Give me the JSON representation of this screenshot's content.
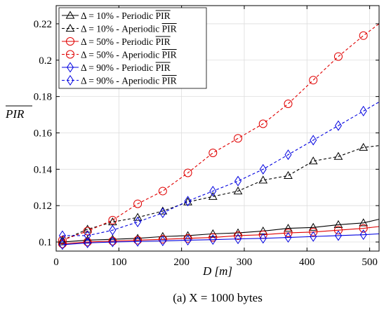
{
  "chart_data": {
    "type": "line",
    "xlabel": "D [m]",
    "ylabel": "PIR",
    "caption": "(a) X = 1000 bytes",
    "xlim": [
      0,
      515
    ],
    "ylim": [
      0.095,
      0.23
    ],
    "xticks": [
      "0",
      "100",
      "200",
      "300",
      "400",
      "500"
    ],
    "xtick_values": [
      0,
      100,
      200,
      300,
      400,
      500
    ],
    "yticks": [
      "0.1",
      "0.12",
      "0.14",
      "0.16",
      "0.18",
      "0.2",
      "0.22"
    ],
    "ytick_values": [
      0.1,
      0.12,
      0.14,
      0.16,
      0.18,
      0.2,
      0.22
    ],
    "grid": true,
    "legend_position": "top-left",
    "series": [
      {
        "name": "Δ = 10% - Periodic PIR",
        "color": "#000000",
        "dash": "solid",
        "marker": "triangle",
        "x": [
          10,
          50,
          90,
          130,
          170,
          210,
          250,
          290,
          330,
          370,
          410,
          450,
          490,
          515
        ],
        "y": [
          0.1,
          0.101,
          0.1015,
          0.102,
          0.103,
          0.1035,
          0.1045,
          0.105,
          0.106,
          0.1075,
          0.108,
          0.1095,
          0.1105,
          0.1125
        ]
      },
      {
        "name": "Δ = 10% - Aperiodic PIR",
        "color": "#000000",
        "dash": "dashed",
        "marker": "triangle",
        "x": [
          10,
          50,
          90,
          130,
          170,
          210,
          250,
          290,
          330,
          370,
          410,
          450,
          490,
          515
        ],
        "y": [
          0.101,
          0.107,
          0.111,
          0.1135,
          0.117,
          0.122,
          0.125,
          0.128,
          0.134,
          0.1365,
          0.1445,
          0.147,
          0.152,
          0.153
        ]
      },
      {
        "name": "Δ = 50% - Periodic PIR",
        "color": "#e00000",
        "dash": "solid",
        "marker": "circle",
        "x": [
          10,
          50,
          90,
          130,
          170,
          210,
          250,
          290,
          330,
          370,
          410,
          450,
          490,
          515
        ],
        "y": [
          0.099,
          0.1,
          0.1005,
          0.101,
          0.1015,
          0.102,
          0.1025,
          0.1035,
          0.104,
          0.105,
          0.1055,
          0.1065,
          0.1075,
          0.1085
        ]
      },
      {
        "name": "Δ = 50% - Aperiodic PIR",
        "color": "#e00000",
        "dash": "dashed",
        "marker": "circle",
        "x": [
          10,
          50,
          90,
          130,
          170,
          210,
          250,
          290,
          330,
          370,
          410,
          450,
          490,
          515
        ],
        "y": [
          0.101,
          0.106,
          0.112,
          0.121,
          0.128,
          0.138,
          0.149,
          0.157,
          0.165,
          0.176,
          0.189,
          0.202,
          0.2135,
          0.22
        ]
      },
      {
        "name": "Δ = 90% - Periodic PIR",
        "color": "#0000e0",
        "dash": "solid",
        "marker": "diamond",
        "x": [
          10,
          50,
          90,
          130,
          170,
          210,
          250,
          290,
          330,
          370,
          410,
          450,
          490,
          515
        ],
        "y": [
          0.0985,
          0.0995,
          0.1,
          0.1003,
          0.1006,
          0.101,
          0.1013,
          0.1017,
          0.102,
          0.1025,
          0.103,
          0.1035,
          0.104,
          0.1045
        ]
      },
      {
        "name": "Δ = 90% - Aperiodic PIR",
        "color": "#0000e0",
        "dash": "dashed",
        "marker": "diamond",
        "x": [
          10,
          50,
          90,
          130,
          170,
          210,
          250,
          290,
          330,
          370,
          410,
          450,
          490,
          515
        ],
        "y": [
          0.1035,
          0.1035,
          0.1065,
          0.111,
          0.116,
          0.1225,
          0.128,
          0.1335,
          0.14,
          0.148,
          0.156,
          0.164,
          0.172,
          0.177
        ]
      }
    ]
  }
}
